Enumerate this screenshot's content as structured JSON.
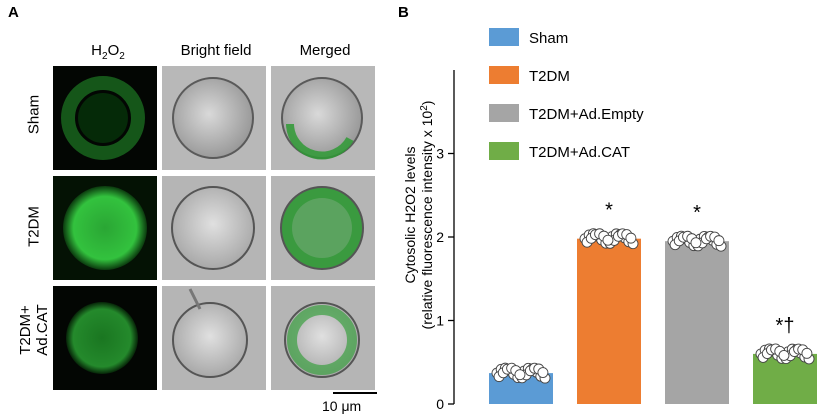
{
  "panel_a": {
    "letter": "A",
    "columns": [
      {
        "label": "H2O2",
        "label_main": "H",
        "sub1": "2",
        "mid": "O",
        "sub2": "2"
      },
      {
        "label": "Bright field"
      },
      {
        "label": "Merged"
      }
    ],
    "rows": [
      {
        "label_line1": "Sham",
        "label_line2": ""
      },
      {
        "label_line1": "T2DM",
        "label_line2": ""
      },
      {
        "label_line1": "T2DM+",
        "label_line2": "Ad.CAT"
      }
    ],
    "scale_bar_label": "10 μm"
  },
  "panel_b": {
    "letter": "B"
  },
  "colors": {
    "sham": "#5b9bd5",
    "t2dm": "#ed7d31",
    "empty": "#a5a5a5",
    "cat": "#70ad47",
    "fluor_green": "#2fbf3a"
  },
  "chart_data": {
    "type": "bar",
    "title": "",
    "ylabel_line1": "Cytosolic H2O2 levels",
    "ylabel_line2": "(relative fluorescence intensity x 10",
    "ylabel_line2_sup": "2",
    "ylabel_line2_end": ")",
    "xlabel": "",
    "ylim": [
      0,
      4
    ],
    "yticks": [
      "0",
      "1",
      "2",
      "3"
    ],
    "categories": [
      "Sham",
      "T2DM",
      "T2DM+Ad.Empty",
      "T2DM+Ad.CAT"
    ],
    "values": [
      0.37,
      1.98,
      1.95,
      0.6
    ],
    "annotations": [
      "",
      "*",
      "*",
      "*†"
    ],
    "legend": [
      "Sham",
      "T2DM",
      "T2DM+Ad.Empty",
      "T2DM+Ad.CAT"
    ],
    "legend_position": "top-left",
    "points_per_group": 24,
    "point_spread": [
      0.06,
      0.06,
      0.06,
      0.06
    ]
  }
}
